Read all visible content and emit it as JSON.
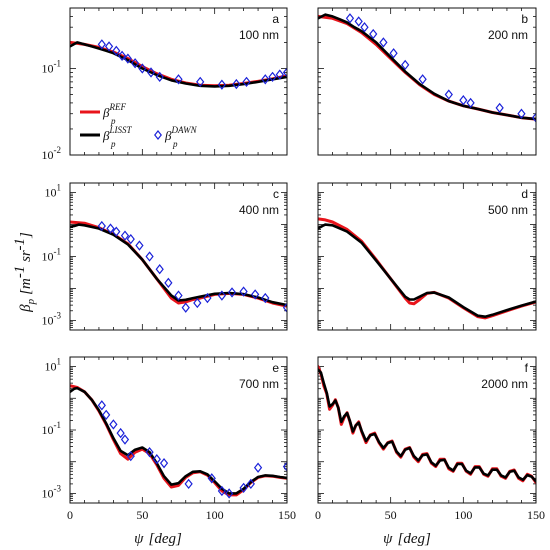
{
  "colors": {
    "ref": "#e8141b",
    "lisst": "#000000",
    "dawn": "#1b22d9"
  },
  "axis": {
    "ylabel_symbol": "β",
    "ylabel_sub": "p",
    "ylabel_unit": "[m",
    "ylabel_exp1": "-1",
    "ylabel_mid": " sr",
    "ylabel_exp2": "-1",
    "ylabel_end": "]",
    "xlabel_symbol": "ψ",
    "xlabel_unit": "[deg]"
  },
  "legend": {
    "ref": {
      "base": "β",
      "sub": "p",
      "sup": "REF"
    },
    "lisst": {
      "base": "β",
      "sub": "p",
      "sup": "LISST"
    },
    "dawn": {
      "base": "β",
      "sub": "p",
      "sup": "DAWN"
    }
  },
  "chart_data": [
    {
      "panel": "a",
      "label": "100 nm",
      "type": "line",
      "xlim": [
        0,
        150
      ],
      "ylim": [
        0.01,
        0.5
      ],
      "ylog": true,
      "yticks": [
        {
          "v": 0.1,
          "t": "10",
          "e": "-1"
        },
        {
          "v": 0.01,
          "t": "10",
          "e": "-2"
        }
      ],
      "xticks": [],
      "show_legend": true,
      "series": [
        {
          "name": "β_p^REF",
          "kind": "line",
          "x": [
            0,
            10,
            20,
            30,
            40,
            50,
            60,
            70,
            80,
            90,
            100,
            110,
            120,
            130,
            140,
            150
          ],
          "y": [
            0.2,
            0.19,
            0.175,
            0.155,
            0.13,
            0.105,
            0.087,
            0.075,
            0.068,
            0.064,
            0.063,
            0.064,
            0.067,
            0.071,
            0.076,
            0.082
          ]
        },
        {
          "name": "β_p^LISST",
          "kind": "line",
          "x": [
            0,
            5,
            10,
            15,
            20,
            25,
            30,
            40,
            50,
            60,
            70,
            80,
            90,
            100,
            110,
            120,
            130,
            140,
            150
          ],
          "y": [
            0.18,
            0.2,
            0.19,
            0.18,
            0.17,
            0.16,
            0.15,
            0.125,
            0.1,
            0.084,
            0.073,
            0.067,
            0.063,
            0.062,
            0.063,
            0.066,
            0.07,
            0.075,
            0.08
          ]
        },
        {
          "name": "β_p^DAWN",
          "kind": "scatter",
          "x": [
            22,
            27,
            32,
            36,
            40,
            45,
            50,
            56,
            62,
            75,
            90,
            105,
            115,
            122,
            135,
            140,
            145,
            150
          ],
          "y": [
            0.19,
            0.18,
            0.16,
            0.14,
            0.13,
            0.115,
            0.1,
            0.09,
            0.08,
            0.075,
            0.07,
            0.065,
            0.066,
            0.07,
            0.075,
            0.08,
            0.085,
            0.09
          ]
        }
      ]
    },
    {
      "panel": "b",
      "label": "200 nm",
      "type": "line",
      "xlim": [
        0,
        150
      ],
      "ylim": [
        0.01,
        0.5
      ],
      "ylog": true,
      "yticks": [],
      "xticks": [],
      "show_legend": false,
      "series": [
        {
          "name": "β_p^REF",
          "kind": "line",
          "x": [
            0,
            10,
            20,
            30,
            40,
            50,
            60,
            70,
            80,
            90,
            100,
            110,
            120,
            130,
            140,
            150
          ],
          "y": [
            0.4,
            0.38,
            0.33,
            0.26,
            0.19,
            0.13,
            0.09,
            0.065,
            0.05,
            0.042,
            0.037,
            0.034,
            0.031,
            0.029,
            0.027,
            0.026
          ]
        },
        {
          "name": "β_p^LISST",
          "kind": "line",
          "x": [
            0,
            5,
            10,
            15,
            20,
            25,
            30,
            40,
            50,
            60,
            70,
            80,
            90,
            100,
            110,
            120,
            130,
            140,
            150
          ],
          "y": [
            0.38,
            0.42,
            0.4,
            0.37,
            0.34,
            0.3,
            0.27,
            0.2,
            0.135,
            0.092,
            0.066,
            0.051,
            0.042,
            0.037,
            0.034,
            0.031,
            0.029,
            0.027,
            0.026
          ]
        },
        {
          "name": "β_p^DAWN",
          "kind": "scatter",
          "x": [
            22,
            28,
            32,
            38,
            45,
            52,
            60,
            72,
            90,
            100,
            105,
            125,
            140,
            150
          ],
          "y": [
            0.38,
            0.35,
            0.3,
            0.25,
            0.2,
            0.15,
            0.11,
            0.075,
            0.05,
            0.043,
            0.04,
            0.035,
            0.03,
            0.027
          ]
        }
      ]
    },
    {
      "panel": "c",
      "label": "400 nm",
      "type": "line",
      "xlim": [
        0,
        150
      ],
      "ylim": [
        0.0005,
        20
      ],
      "ylog": true,
      "yticks": [
        {
          "v": 10,
          "t": "10",
          "e": "1"
        },
        {
          "v": 0.1,
          "t": "10",
          "e": "-1"
        },
        {
          "v": 0.001,
          "t": "10",
          "e": "-3"
        }
      ],
      "xticks": [],
      "show_legend": false,
      "series": [
        {
          "name": "β_p^REF",
          "kind": "line",
          "x": [
            0,
            10,
            20,
            30,
            40,
            50,
            60,
            70,
            75,
            80,
            85,
            90,
            100,
            110,
            120,
            130,
            140,
            150
          ],
          "y": [
            1.2,
            1.1,
            0.8,
            0.5,
            0.25,
            0.08,
            0.02,
            0.005,
            0.0035,
            0.0038,
            0.0045,
            0.005,
            0.0065,
            0.007,
            0.0065,
            0.005,
            0.0035,
            0.0028
          ]
        },
        {
          "name": "β_p^LISST",
          "kind": "line",
          "x": [
            0,
            3,
            6,
            10,
            20,
            30,
            40,
            50,
            60,
            70,
            75,
            80,
            85,
            90,
            100,
            110,
            120,
            130,
            140,
            150
          ],
          "y": [
            0.85,
            0.9,
            1.0,
            0.95,
            0.75,
            0.48,
            0.24,
            0.08,
            0.02,
            0.006,
            0.0042,
            0.0044,
            0.005,
            0.0055,
            0.0068,
            0.0072,
            0.0066,
            0.0052,
            0.0037,
            0.003
          ]
        },
        {
          "name": "β_p^DAWN",
          "kind": "scatter",
          "x": [
            22,
            28,
            32,
            38,
            42,
            48,
            55,
            62,
            68,
            75,
            80,
            88,
            95,
            105,
            112,
            120,
            128,
            135,
            150
          ],
          "y": [
            0.9,
            0.75,
            0.6,
            0.45,
            0.35,
            0.22,
            0.1,
            0.04,
            0.015,
            0.006,
            0.0025,
            0.0035,
            0.005,
            0.006,
            0.0075,
            0.008,
            0.0065,
            0.005,
            0.0025
          ]
        }
      ]
    },
    {
      "panel": "d",
      "label": "500 nm",
      "type": "line",
      "xlim": [
        0,
        150
      ],
      "ylim": [
        0.0005,
        20
      ],
      "ylog": true,
      "yticks": [],
      "xticks": [],
      "show_legend": false,
      "series": [
        {
          "name": "β_p^REF",
          "kind": "line",
          "x": [
            0,
            5,
            10,
            20,
            30,
            40,
            50,
            60,
            63,
            66,
            70,
            75,
            80,
            90,
            100,
            110,
            115,
            120,
            130,
            140,
            150
          ],
          "y": [
            1.5,
            1.4,
            1.2,
            0.7,
            0.3,
            0.08,
            0.02,
            0.005,
            0.0035,
            0.0033,
            0.0045,
            0.007,
            0.0075,
            0.005,
            0.0025,
            0.0013,
            0.0012,
            0.0014,
            0.002,
            0.0028,
            0.0038
          ]
        },
        {
          "name": "β_p^LISST",
          "kind": "line",
          "x": [
            0,
            3,
            5,
            10,
            20,
            30,
            40,
            50,
            60,
            63,
            66,
            70,
            75,
            80,
            90,
            100,
            110,
            115,
            120,
            130,
            140,
            150
          ],
          "y": [
            0.75,
            0.9,
            1.0,
            0.95,
            0.6,
            0.27,
            0.075,
            0.02,
            0.0055,
            0.0045,
            0.0045,
            0.0055,
            0.0072,
            0.0074,
            0.0052,
            0.0026,
            0.0014,
            0.0013,
            0.0015,
            0.0021,
            0.0029,
            0.0039
          ]
        }
      ]
    },
    {
      "panel": "e",
      "label": "700 nm",
      "type": "line",
      "xlim": [
        0,
        150
      ],
      "ylim": [
        0.0005,
        20
      ],
      "ylog": true,
      "yticks": [
        {
          "v": 10,
          "t": "10",
          "e": "1"
        },
        {
          "v": 0.1,
          "t": "10",
          "e": "-1"
        },
        {
          "v": 0.001,
          "t": "10",
          "e": "-3"
        }
      ],
      "xticks": [
        {
          "v": 0,
          "t": "0"
        },
        {
          "v": 50,
          "t": "50"
        },
        {
          "v": 100,
          "t": "100"
        },
        {
          "v": 150,
          "t": "150"
        }
      ],
      "show_legend": false,
      "series": [
        {
          "name": "β_p^REF",
          "kind": "line",
          "x": [
            0,
            5,
            10,
            15,
            20,
            25,
            30,
            35,
            40,
            45,
            50,
            55,
            60,
            65,
            70,
            75,
            80,
            85,
            90,
            95,
            100,
            105,
            110,
            115,
            120,
            125,
            130,
            135,
            140,
            145,
            150
          ],
          "y": [
            2.5,
            2.2,
            1.6,
            0.9,
            0.4,
            0.15,
            0.05,
            0.018,
            0.012,
            0.02,
            0.025,
            0.018,
            0.008,
            0.003,
            0.0016,
            0.0018,
            0.0032,
            0.0045,
            0.0048,
            0.0038,
            0.0022,
            0.0012,
            0.0009,
            0.0009,
            0.0013,
            0.0022,
            0.0032,
            0.0036,
            0.0035,
            0.0032,
            0.003
          ]
        },
        {
          "name": "β_p^LISST",
          "kind": "line",
          "x": [
            0,
            3,
            5,
            10,
            15,
            20,
            25,
            30,
            35,
            40,
            45,
            50,
            55,
            60,
            65,
            70,
            75,
            80,
            85,
            90,
            95,
            100,
            105,
            110,
            115,
            120,
            125,
            130,
            135,
            140,
            145,
            150
          ],
          "y": [
            1.6,
            2.0,
            2.1,
            1.6,
            0.9,
            0.42,
            0.16,
            0.055,
            0.022,
            0.016,
            0.024,
            0.028,
            0.02,
            0.009,
            0.0035,
            0.0019,
            0.0021,
            0.0035,
            0.0048,
            0.005,
            0.004,
            0.0024,
            0.0014,
            0.001,
            0.001,
            0.0014,
            0.0023,
            0.0033,
            0.0037,
            0.0036,
            0.0033,
            0.0031
          ]
        },
        {
          "name": "β_p^DAWN",
          "kind": "scatter",
          "x": [
            22,
            25,
            30,
            35,
            38,
            42,
            55,
            60,
            65,
            82,
            98,
            105,
            110,
            120,
            125,
            130,
            150
          ],
          "y": [
            0.6,
            0.3,
            0.15,
            0.08,
            0.05,
            0.015,
            0.02,
            0.012,
            0.009,
            0.002,
            0.003,
            0.0012,
            0.001,
            0.0015,
            0.002,
            0.0065,
            0.007
          ]
        }
      ]
    },
    {
      "panel": "f",
      "label": "2000 nm",
      "type": "line",
      "xlim": [
        0,
        150
      ],
      "ylim": [
        0.0005,
        20
      ],
      "ylog": true,
      "yticks": [],
      "xticks": [
        {
          "v": 0,
          "t": "0"
        },
        {
          "v": 50,
          "t": "50"
        },
        {
          "v": 100,
          "t": "100"
        },
        {
          "v": 150,
          "t": "150"
        }
      ],
      "show_legend": false,
      "series": [
        {
          "name": "β_p^REF",
          "kind": "line",
          "x": [
            0,
            2,
            4,
            6,
            8,
            10,
            12,
            14,
            16,
            18,
            20,
            22,
            24,
            26,
            28,
            30,
            33,
            36,
            39,
            42,
            45,
            48,
            51,
            54,
            57,
            60,
            63,
            66,
            69,
            72,
            75,
            78,
            81,
            84,
            87,
            90,
            93,
            96,
            99,
            102,
            105,
            108,
            111,
            114,
            117,
            120,
            123,
            126,
            129,
            132,
            135,
            138,
            141,
            144,
            147,
            150
          ],
          "y": [
            10,
            6,
            2.5,
            1.4,
            0.45,
            0.6,
            0.9,
            0.5,
            0.15,
            0.25,
            0.35,
            0.18,
            0.08,
            0.14,
            0.18,
            0.09,
            0.04,
            0.07,
            0.08,
            0.04,
            0.025,
            0.04,
            0.045,
            0.02,
            0.014,
            0.025,
            0.028,
            0.014,
            0.01,
            0.017,
            0.018,
            0.009,
            0.007,
            0.012,
            0.012,
            0.006,
            0.005,
            0.009,
            0.009,
            0.005,
            0.004,
            0.007,
            0.007,
            0.004,
            0.0035,
            0.006,
            0.006,
            0.0035,
            0.003,
            0.005,
            0.0055,
            0.003,
            0.0025,
            0.004,
            0.0035,
            0.0022
          ]
        },
        {
          "name": "β_p^LISST",
          "kind": "line",
          "x": [
            0,
            2,
            4,
            6,
            8,
            10,
            12,
            14,
            16,
            18,
            20,
            22,
            24,
            26,
            28,
            30,
            33,
            36,
            39,
            42,
            45,
            48,
            51,
            54,
            57,
            60,
            63,
            66,
            69,
            72,
            75,
            78,
            81,
            84,
            87,
            90,
            93,
            96,
            99,
            102,
            105,
            108,
            111,
            114,
            117,
            120,
            123,
            126,
            129,
            132,
            135,
            138,
            141,
            144,
            147,
            150
          ],
          "y": [
            8,
            6.5,
            3,
            1.5,
            0.55,
            0.65,
            0.85,
            0.5,
            0.18,
            0.27,
            0.34,
            0.19,
            0.09,
            0.14,
            0.17,
            0.095,
            0.045,
            0.068,
            0.075,
            0.042,
            0.027,
            0.039,
            0.043,
            0.021,
            0.015,
            0.024,
            0.027,
            0.015,
            0.011,
            0.016,
            0.017,
            0.0095,
            0.0075,
            0.011,
            0.0115,
            0.0065,
            0.0053,
            0.0085,
            0.0085,
            0.0052,
            0.0043,
            0.0066,
            0.0066,
            0.0042,
            0.0037,
            0.0056,
            0.0056,
            0.0037,
            0.0032,
            0.0048,
            0.0052,
            0.0032,
            0.0027,
            0.0038,
            0.0034,
            0.0024
          ]
        }
      ]
    }
  ]
}
